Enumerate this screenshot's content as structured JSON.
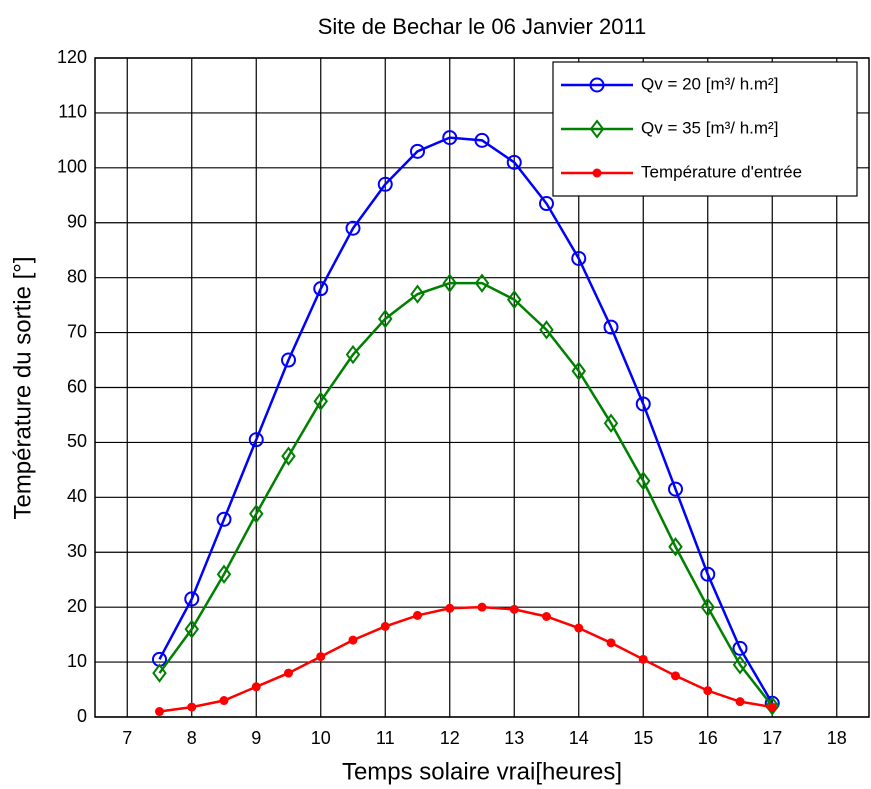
{
  "chart_data": {
    "type": "line",
    "title": "Site de Bechar le 06 Janvier 2011",
    "xlabel": "Temps solaire vrai[heures]",
    "ylabel": "Température du sortie [°]",
    "x": [
      7.5,
      8,
      8.5,
      9,
      9.5,
      10,
      10.5,
      11,
      11.5,
      12,
      12.5,
      13,
      13.5,
      14,
      14.5,
      15,
      15.5,
      16,
      16.5,
      17
    ],
    "series": [
      {
        "name": "Qv = 20 [m³/ h.m²]",
        "color": "#0000ff",
        "marker": "circle",
        "values": [
          10.5,
          21.5,
          36,
          50.5,
          65,
          78,
          89,
          97,
          103,
          105.5,
          105,
          101,
          93.5,
          83.5,
          71,
          57,
          41.5,
          26,
          12.5,
          2.5
        ]
      },
      {
        "name": "Qv = 35 [m³/ h.m²]",
        "color": "#008000",
        "marker": "diamond",
        "values": [
          8,
          16,
          26,
          37,
          47.5,
          57.5,
          66,
          72.5,
          77,
          79,
          79,
          76,
          70.5,
          63,
          53.5,
          43,
          31,
          20,
          9.5,
          2
        ]
      },
      {
        "name": "Température d'entrée",
        "color": "#ff0000",
        "marker": "star",
        "values": [
          1,
          1.8,
          3,
          5.5,
          8,
          11,
          14,
          16.5,
          18.5,
          19.8,
          20,
          19.6,
          18.3,
          16.2,
          13.5,
          10.5,
          7.5,
          4.8,
          2.8,
          1.8
        ]
      }
    ],
    "xlim": [
      6.5,
      18.5
    ],
    "ylim": [
      0,
      120
    ],
    "xticks": [
      7,
      8,
      9,
      10,
      11,
      12,
      13,
      14,
      15,
      16,
      17,
      18
    ],
    "yticks": [
      0,
      10,
      20,
      30,
      40,
      50,
      60,
      70,
      80,
      90,
      100,
      110,
      120
    ],
    "grid": true,
    "legend": "upper right"
  }
}
